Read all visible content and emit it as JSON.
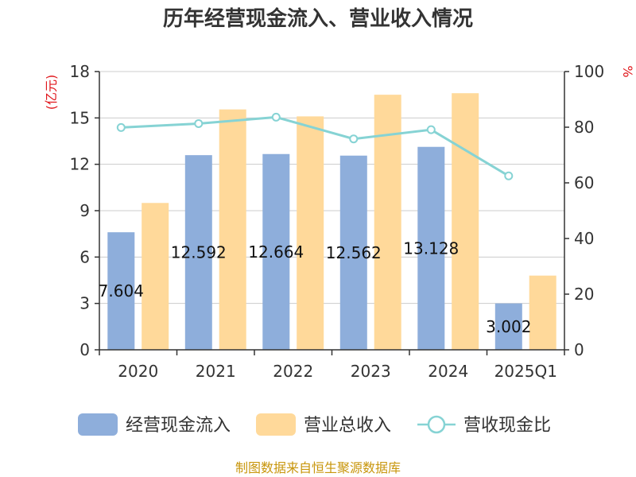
{
  "chart_data": {
    "type": "bar",
    "title": "历年经营现金流入、营业收入情况",
    "categories": [
      "2020",
      "2021",
      "2022",
      "2023",
      "2024",
      "2025Q1"
    ],
    "y_left": {
      "unit": "(亿元)",
      "ylim": [
        0,
        18
      ],
      "ticks": [
        0,
        3,
        6,
        9,
        12,
        15,
        18
      ]
    },
    "y_right": {
      "unit": "%",
      "ylim": [
        0,
        100
      ],
      "ticks": [
        0,
        20,
        40,
        60,
        80,
        100
      ]
    },
    "grid": true,
    "legend_position": "bottom",
    "series": [
      {
        "name": "经营现金流入",
        "type": "bar",
        "axis": "left",
        "color": "#8eaedb",
        "values": [
          7.604,
          12.592,
          12.664,
          12.562,
          13.128,
          3.002
        ],
        "labels": [
          "7.604",
          "12.592",
          "12.664",
          "12.562",
          "13.128",
          "3.002"
        ]
      },
      {
        "name": "营业总收入",
        "type": "bar",
        "axis": "left",
        "color": "#ffd99a",
        "values": [
          9.5,
          15.55,
          15.1,
          16.5,
          16.6,
          4.8
        ]
      },
      {
        "name": "营收现金比",
        "type": "line",
        "axis": "right",
        "color": "#86d3d4",
        "values": [
          79.9,
          81.3,
          83.6,
          75.8,
          79.1,
          62.5
        ]
      }
    ],
    "source": "制图数据来自恒生聚源数据库"
  }
}
